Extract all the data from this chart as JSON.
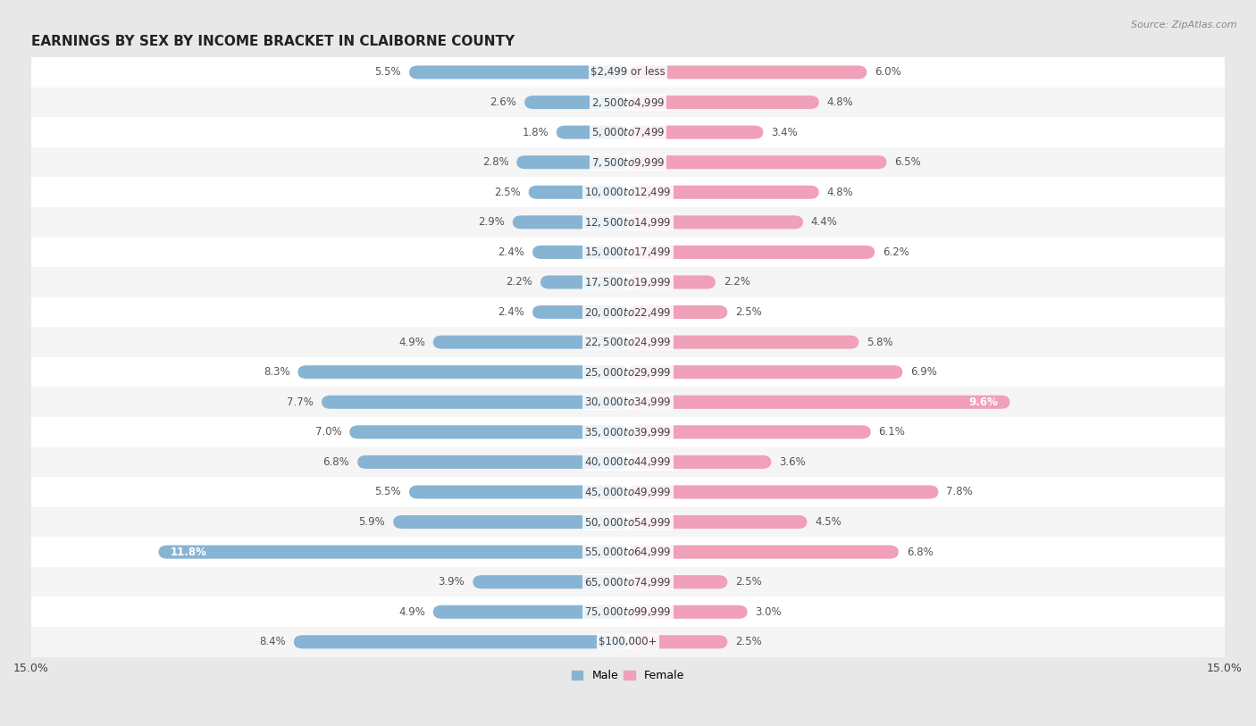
{
  "title": "EARNINGS BY SEX BY INCOME BRACKET IN CLAIBORNE COUNTY",
  "source": "Source: ZipAtlas.com",
  "categories": [
    "$2,499 or less",
    "$2,500 to $4,999",
    "$5,000 to $7,499",
    "$7,500 to $9,999",
    "$10,000 to $12,499",
    "$12,500 to $14,999",
    "$15,000 to $17,499",
    "$17,500 to $19,999",
    "$20,000 to $22,499",
    "$22,500 to $24,999",
    "$25,000 to $29,999",
    "$30,000 to $34,999",
    "$35,000 to $39,999",
    "$40,000 to $44,999",
    "$45,000 to $49,999",
    "$50,000 to $54,999",
    "$55,000 to $64,999",
    "$65,000 to $74,999",
    "$75,000 to $99,999",
    "$100,000+"
  ],
  "male": [
    5.5,
    2.6,
    1.8,
    2.8,
    2.5,
    2.9,
    2.4,
    2.2,
    2.4,
    4.9,
    8.3,
    7.7,
    7.0,
    6.8,
    5.5,
    5.9,
    11.8,
    3.9,
    4.9,
    8.4
  ],
  "female": [
    6.0,
    4.8,
    3.4,
    6.5,
    4.8,
    4.4,
    6.2,
    2.2,
    2.5,
    5.8,
    6.9,
    9.6,
    6.1,
    3.6,
    7.8,
    4.5,
    6.8,
    2.5,
    3.0,
    2.5
  ],
  "male_color": "#88b4d4",
  "female_color": "#f0a0b8",
  "bg_color": "#e8e8e8",
  "row_color_odd": "#f5f5f5",
  "row_color_even": "#ffffff",
  "axis_limit": 15.0,
  "label_fontsize": 8.5,
  "title_fontsize": 11,
  "category_fontsize": 8.5,
  "special_inside_female": {
    "11": 9.6
  },
  "special_inside_male": {
    "16": 11.8
  }
}
